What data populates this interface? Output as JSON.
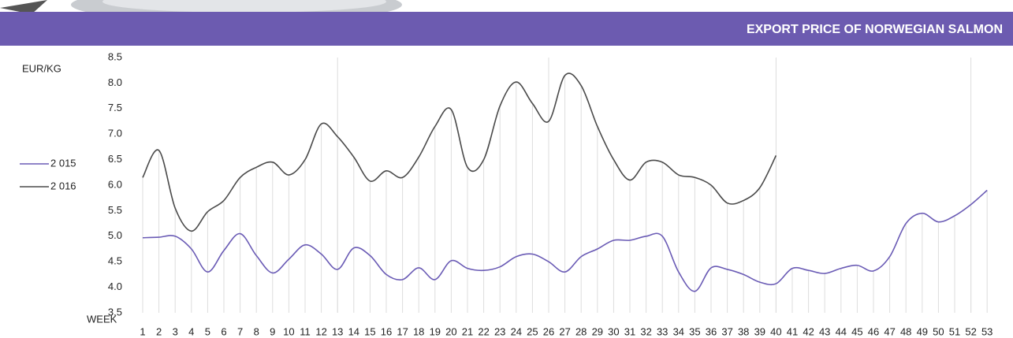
{
  "chart_data": {
    "type": "line",
    "title": "EXPORT PRICE OF NORWEGIAN SALMON",
    "y_label": "EUR/KG",
    "x_label": "WEEK",
    "categories": [
      "1",
      "2",
      "3",
      "4",
      "5",
      "6",
      "7",
      "8",
      "9",
      "10",
      "11",
      "12",
      "13",
      "14",
      "15",
      "16",
      "17",
      "18",
      "19",
      "20",
      "21",
      "22",
      "23",
      "24",
      "25",
      "26",
      "27",
      "28",
      "29",
      "30",
      "31",
      "32",
      "33",
      "34",
      "35",
      "36",
      "37",
      "38",
      "39",
      "40",
      "41",
      "42",
      "43",
      "44",
      "45",
      "46",
      "47",
      "48",
      "49",
      "50",
      "51",
      "52",
      "53"
    ],
    "series": [
      {
        "name": "2 015",
        "color": "#6a5bb5",
        "values": [
          4.97,
          4.98,
          5.0,
          4.75,
          4.3,
          4.72,
          5.05,
          4.62,
          4.28,
          4.55,
          4.83,
          4.65,
          4.35,
          4.77,
          4.62,
          4.25,
          4.15,
          4.38,
          4.15,
          4.52,
          4.37,
          4.33,
          4.4,
          4.6,
          4.65,
          4.5,
          4.3,
          4.6,
          4.75,
          4.92,
          4.92,
          5.0,
          5.0,
          4.3,
          3.92,
          4.38,
          4.35,
          4.25,
          4.1,
          4.07,
          4.37,
          4.33,
          4.27,
          4.37,
          4.43,
          4.32,
          4.6,
          5.25,
          5.45,
          5.28,
          5.4,
          5.62,
          5.9
        ]
      },
      {
        "name": "2 016",
        "color": "#4a4a4a",
        "values": [
          6.15,
          6.68,
          5.55,
          5.1,
          5.48,
          5.7,
          6.15,
          6.35,
          6.45,
          6.2,
          6.5,
          7.2,
          6.95,
          6.55,
          6.08,
          6.28,
          6.15,
          6.55,
          7.15,
          7.48,
          6.35,
          6.5,
          7.55,
          8.02,
          7.6,
          7.25,
          8.15,
          7.95,
          7.15,
          6.5,
          6.1,
          6.45,
          6.45,
          6.2,
          6.15,
          6.0,
          5.65,
          5.7,
          5.95,
          6.58,
          null,
          null,
          null,
          null,
          null,
          null,
          null,
          null,
          null,
          null,
          null,
          null,
          null
        ]
      }
    ],
    "ylim": [
      3.5,
      8.5
    ],
    "yticks": [
      3.5,
      {
        "value": 4,
        "label": "4.0"
      },
      4.5,
      {
        "value": 5,
        "label": "5.0"
      },
      5.5,
      {
        "value": 6,
        "label": "6.0"
      },
      6.5,
      {
        "value": 7,
        "label": "7.0"
      },
      7.5,
      {
        "value": 8,
        "label": "8.0"
      },
      8.5
    ],
    "legend": "left"
  }
}
